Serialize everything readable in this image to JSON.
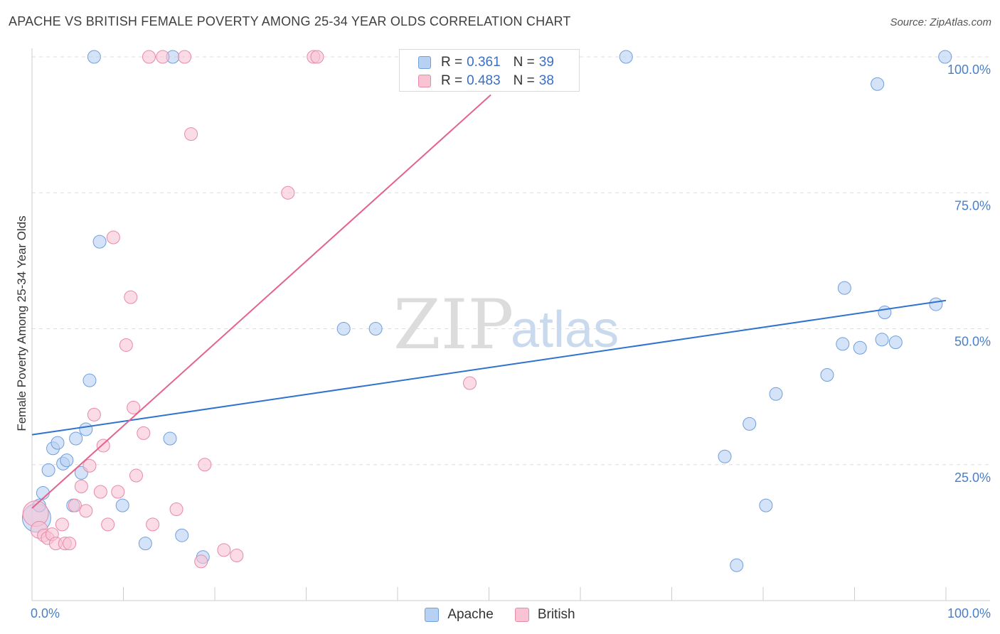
{
  "title": "APACHE VS BRITISH FEMALE POVERTY AMONG 25-34 YEAR OLDS CORRELATION CHART",
  "source": "Source: ZipAtlas.com",
  "watermark": {
    "zip": "ZIP",
    "atlas": "atlas"
  },
  "legend": {
    "apache": {
      "r_label": "R =",
      "r_value": "0.361",
      "n_label": "N =",
      "n_value": "39"
    },
    "british": {
      "r_label": "R =",
      "r_value": "0.483",
      "n_label": "N =",
      "n_value": "38"
    }
  },
  "colors": {
    "apache_fill": "#b7d1f3",
    "apache_stroke": "#6f9fdc",
    "apache_line": "#2f72cf",
    "british_fill": "#f8c3d3",
    "british_stroke": "#e78aa8",
    "british_line": "#e4638b",
    "grid": "#dddddd",
    "axis": "#cccccc"
  },
  "chart_data": {
    "type": "scatter",
    "title": "APACHE VS BRITISH FEMALE POVERTY AMONG 25-34 YEAR OLDS CORRELATION CHART",
    "xlabel": "",
    "ylabel": "Female Poverty Among 25-34 Year Olds",
    "xlim": [
      0,
      100
    ],
    "ylim": [
      0,
      100
    ],
    "x_tick_labels": [
      "0.0%",
      "100.0%"
    ],
    "y_tick_labels": [
      {
        "value": 25,
        "label": "25.0%"
      },
      {
        "value": 50,
        "label": "50.0%"
      },
      {
        "value": 75,
        "label": "75.0%"
      },
      {
        "value": 100,
        "label": "100.0%"
      }
    ],
    "series": [
      {
        "name": "Apache",
        "r": 0.361,
        "n": 39,
        "trend": {
          "x": [
            0,
            100
          ],
          "y": [
            30.5,
            55.2
          ]
        },
        "points": [
          [
            0.5,
            15.2,
            20
          ],
          [
            0.8,
            17.5,
            9
          ],
          [
            1.2,
            19.8,
            9
          ],
          [
            1.8,
            24.0,
            9
          ],
          [
            2.3,
            28.0,
            9
          ],
          [
            2.8,
            29.0,
            9
          ],
          [
            3.4,
            25.2,
            9
          ],
          [
            3.8,
            25.8,
            9
          ],
          [
            4.5,
            17.5,
            9
          ],
          [
            4.8,
            29.8,
            9
          ],
          [
            5.4,
            23.5,
            9
          ],
          [
            5.9,
            31.5,
            9
          ],
          [
            6.3,
            40.5,
            9
          ],
          [
            6.8,
            100,
            9
          ],
          [
            7.4,
            66.0,
            9
          ],
          [
            9.9,
            17.5,
            9
          ],
          [
            12.4,
            10.5,
            9
          ],
          [
            15.4,
            100,
            9
          ],
          [
            15.1,
            29.8,
            9
          ],
          [
            16.4,
            12.0,
            9
          ],
          [
            18.7,
            8.0,
            9
          ],
          [
            34.1,
            50.0,
            9
          ],
          [
            37.6,
            50.0,
            9
          ],
          [
            65.0,
            100,
            9
          ],
          [
            75.8,
            26.5,
            9
          ],
          [
            77.1,
            6.5,
            9
          ],
          [
            78.5,
            32.5,
            9
          ],
          [
            80.3,
            17.5,
            9
          ],
          [
            81.4,
            38.0,
            9
          ],
          [
            87.0,
            41.5,
            9
          ],
          [
            88.7,
            47.2,
            9
          ],
          [
            88.9,
            57.5,
            9
          ],
          [
            90.6,
            46.5,
            9
          ],
          [
            92.5,
            95.0,
            9
          ],
          [
            93.0,
            48.0,
            9
          ],
          [
            93.3,
            53.0,
            9
          ],
          [
            94.5,
            47.5,
            9
          ],
          [
            98.9,
            54.5,
            9
          ],
          [
            99.9,
            100,
            9
          ]
        ]
      },
      {
        "name": "British",
        "r": 0.483,
        "n": 38,
        "trend": {
          "x": [
            0,
            50.2
          ],
          "y": [
            17.0,
            93.0
          ]
        },
        "points": [
          [
            0.4,
            16.0,
            18
          ],
          [
            0.8,
            13.0,
            12
          ],
          [
            1.3,
            12.0,
            9
          ],
          [
            1.7,
            11.5,
            9
          ],
          [
            2.2,
            12.2,
            9
          ],
          [
            2.6,
            10.5,
            9
          ],
          [
            3.3,
            14.0,
            9
          ],
          [
            3.6,
            10.5,
            9
          ],
          [
            4.1,
            10.5,
            9
          ],
          [
            4.7,
            17.5,
            9
          ],
          [
            5.4,
            21.0,
            9
          ],
          [
            5.9,
            16.5,
            9
          ],
          [
            6.3,
            24.8,
            9
          ],
          [
            6.8,
            34.2,
            9
          ],
          [
            7.5,
            20.0,
            9
          ],
          [
            7.8,
            28.5,
            9
          ],
          [
            8.3,
            14.0,
            9
          ],
          [
            8.9,
            66.8,
            9
          ],
          [
            9.4,
            20.0,
            9
          ],
          [
            10.3,
            47.0,
            9
          ],
          [
            10.8,
            55.8,
            9
          ],
          [
            11.1,
            35.5,
            9
          ],
          [
            11.4,
            23.0,
            9
          ],
          [
            12.2,
            30.8,
            9
          ],
          [
            12.8,
            100,
            9
          ],
          [
            13.2,
            14.0,
            9
          ],
          [
            14.3,
            100,
            9
          ],
          [
            15.8,
            16.8,
            9
          ],
          [
            16.7,
            100,
            9
          ],
          [
            17.4,
            85.8,
            9
          ],
          [
            18.5,
            7.2,
            9
          ],
          [
            18.9,
            25.0,
            9
          ],
          [
            21.0,
            9.3,
            9
          ],
          [
            22.4,
            8.3,
            9
          ],
          [
            28.0,
            75.0,
            9
          ],
          [
            30.8,
            100,
            9
          ],
          [
            31.2,
            100,
            9
          ],
          [
            47.9,
            40.0,
            9
          ]
        ]
      }
    ]
  },
  "bottom_legend": {
    "apache": "Apache",
    "british": "British"
  }
}
